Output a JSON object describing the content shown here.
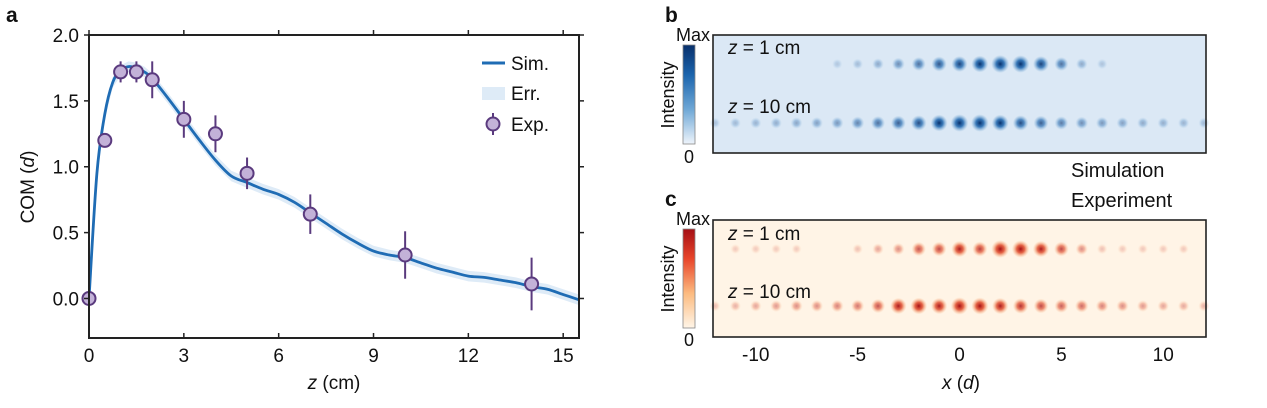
{
  "panels": {
    "a": {
      "letter": "a"
    },
    "b": {
      "letter": "b"
    },
    "c": {
      "letter": "c"
    }
  },
  "chart_data": [
    {
      "id": "a",
      "type": "line",
      "title": "",
      "xlabel_var": "z",
      "xlabel_unit": " (cm)",
      "ylabel_prefix": "COM (",
      "ylabel_var": "d",
      "ylabel_suffix": ")",
      "xlim": [
        0,
        15.5
      ],
      "ylim": [
        -0.3,
        2.0
      ],
      "xticks": [
        0,
        3,
        6,
        9,
        12,
        15
      ],
      "xtick_labels": [
        "0",
        "3",
        "6",
        "9",
        "12",
        "15"
      ],
      "yticks": [
        0.0,
        0.5,
        1.0,
        1.5,
        2.0
      ],
      "ytick_labels": [
        "0.0",
        "0.5",
        "1.0",
        "1.5",
        "2.0"
      ],
      "grid": false,
      "legend_position": "top-right",
      "legend": [
        "Sim.",
        "Err.",
        "Exp."
      ],
      "series": [
        {
          "name": "Sim.",
          "kind": "line",
          "color": "#1f6cb4",
          "x": [
            0,
            0.25,
            0.5,
            0.75,
            1.0,
            1.25,
            1.5,
            1.75,
            2.0,
            2.5,
            3.0,
            3.5,
            4.0,
            4.5,
            5.0,
            5.5,
            6.0,
            6.5,
            7.0,
            7.5,
            8.0,
            8.5,
            9.0,
            9.5,
            10.0,
            10.5,
            11.0,
            11.5,
            12.0,
            12.5,
            13.0,
            13.5,
            14.0,
            14.5,
            15.0,
            15.5
          ],
          "y": [
            0.0,
            0.95,
            1.4,
            1.64,
            1.73,
            1.76,
            1.75,
            1.72,
            1.67,
            1.52,
            1.36,
            1.2,
            1.05,
            0.93,
            0.88,
            0.83,
            0.79,
            0.73,
            0.65,
            0.57,
            0.49,
            0.42,
            0.36,
            0.33,
            0.31,
            0.27,
            0.23,
            0.2,
            0.17,
            0.16,
            0.14,
            0.12,
            0.09,
            0.07,
            0.03,
            -0.01
          ]
        },
        {
          "name": "Err.",
          "kind": "band",
          "color": "#deebf7",
          "half_width": 0.04
        },
        {
          "name": "Exp.",
          "kind": "errorbar",
          "color": "#5a3a7e",
          "fill": "#c3b2d8",
          "x": [
            0,
            0.5,
            1.0,
            1.5,
            2.0,
            3.0,
            4.0,
            5.0,
            7.0,
            10.0,
            14.0
          ],
          "y": [
            0.0,
            1.2,
            1.72,
            1.72,
            1.66,
            1.36,
            1.25,
            0.95,
            0.64,
            0.33,
            0.11
          ],
          "err": [
            0.0,
            0.0,
            0.08,
            0.08,
            0.14,
            0.14,
            0.14,
            0.12,
            0.15,
            0.18,
            0.2
          ]
        }
      ]
    },
    {
      "id": "b",
      "type": "heatmap",
      "caption": "Simulation",
      "colormap": "blues",
      "colorbar_label": "Intensity",
      "colorbar_max": "Max",
      "colorbar_min": "0",
      "colors": {
        "low": "#dce9f5",
        "high": "#08306b"
      },
      "xlim": [
        -12.1,
        12.1
      ],
      "rows": [
        {
          "label_prefix": "z",
          "label_suffix": " = 1 cm",
          "sites": [
            -6,
            -5,
            -4,
            -3,
            -2,
            -1,
            0,
            1,
            2,
            3,
            4,
            5,
            6,
            7
          ],
          "intensity": [
            0.04,
            0.1,
            0.2,
            0.35,
            0.5,
            0.65,
            0.75,
            0.85,
            1.0,
            0.95,
            0.75,
            0.5,
            0.2,
            0.06
          ]
        },
        {
          "label_prefix": "z",
          "label_suffix": " = 10 cm",
          "sites": [
            -12,
            -11,
            -10,
            -9,
            -8,
            -7,
            -6,
            -5,
            -4,
            -3,
            -2,
            -1,
            0,
            1,
            2,
            3,
            4,
            5,
            6,
            7,
            8,
            9,
            10,
            11,
            12
          ],
          "intensity": [
            0.08,
            0.12,
            0.15,
            0.18,
            0.22,
            0.25,
            0.3,
            0.4,
            0.5,
            0.6,
            0.7,
            0.85,
            0.95,
            0.95,
            0.85,
            0.7,
            0.6,
            0.45,
            0.35,
            0.3,
            0.25,
            0.2,
            0.18,
            0.15,
            0.12
          ]
        }
      ]
    },
    {
      "id": "c",
      "type": "heatmap",
      "caption": "Experiment",
      "colormap": "reds",
      "colorbar_label": "Intensity",
      "colorbar_max": "Max",
      "colorbar_min": "0",
      "colors": {
        "low": "#fff5e8",
        "high": "#a50f15"
      },
      "xlim": [
        -12.1,
        12.1
      ],
      "xticks": [
        -10,
        -5,
        0,
        5,
        10
      ],
      "xtick_labels": [
        "-10",
        "-5",
        "0",
        "5",
        "10"
      ],
      "xlabel_var": "x",
      "xlabel_prefix": " (",
      "xlabel_unit_var": "d",
      "xlabel_suffix": ")",
      "rows": [
        {
          "label_prefix": "z",
          "label_suffix": " = 1 cm",
          "sites": [
            -11,
            -10,
            -9,
            -8,
            -5,
            -4,
            -3,
            -2,
            -1,
            0,
            1,
            2,
            3,
            4,
            5,
            6,
            7,
            8,
            9,
            10,
            11
          ],
          "intensity": [
            0.04,
            0.04,
            0.04,
            0.04,
            0.08,
            0.2,
            0.3,
            0.55,
            0.6,
            0.8,
            0.65,
            1.0,
            0.95,
            0.8,
            0.6,
            0.3,
            0.08,
            0.05,
            0.05,
            0.05,
            0.05
          ]
        },
        {
          "label_prefix": "z",
          "label_suffix": " = 10 cm",
          "sites": [
            -12,
            -11,
            -10,
            -9,
            -8,
            -7,
            -6,
            -5,
            -4,
            -3,
            -2,
            -1,
            0,
            1,
            2,
            3,
            4,
            5,
            6,
            7,
            8,
            9,
            10,
            11,
            12
          ],
          "intensity": [
            0.1,
            0.15,
            0.2,
            0.25,
            0.3,
            0.3,
            0.35,
            0.4,
            0.55,
            0.8,
            0.85,
            0.8,
            0.95,
            0.9,
            0.8,
            0.7,
            0.6,
            0.5,
            0.45,
            0.35,
            0.3,
            0.25,
            0.2,
            0.18,
            0.15
          ]
        }
      ]
    }
  ]
}
